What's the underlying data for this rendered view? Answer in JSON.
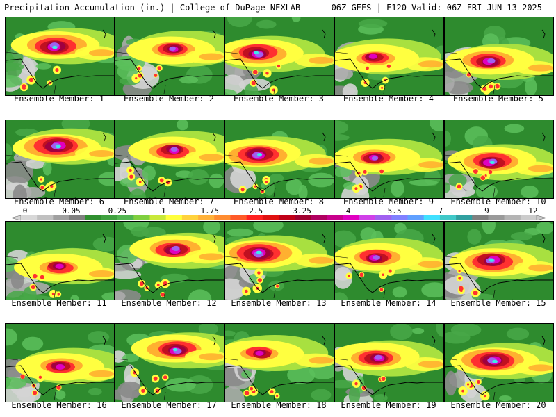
{
  "header": {
    "left": "Precipitation Accumulation (in.) | College of DuPage NEXLAB",
    "right": "06Z GEFS | F120 Valid: 06Z FRI JUN 13 2025"
  },
  "member_label_prefix": "Ensemble Member:",
  "members": [
    1,
    2,
    3,
    4,
    5,
    6,
    7,
    8,
    9,
    10,
    11,
    12,
    13,
    14,
    15,
    16,
    17,
    18,
    19,
    20
  ],
  "colorbar": {
    "tick_labels": [
      "0",
      "0.05",
      "0.25",
      "1",
      "1.75",
      "2.5",
      "3.25",
      "4",
      "5.5",
      "7",
      "9",
      "12"
    ],
    "colors": [
      "#d8d8d8",
      "#c0c0c0",
      "#a0a0a0",
      "#808080",
      "#2f8f2f",
      "#3fa03f",
      "#52b552",
      "#7fcf3f",
      "#c8e83a",
      "#ffff3c",
      "#ffd23c",
      "#ffb13a",
      "#ff8c30",
      "#ff5a28",
      "#ff2020",
      "#e01010",
      "#c00018",
      "#a00030",
      "#b00060",
      "#c8008c",
      "#e000c0",
      "#d040e8",
      "#a060f0",
      "#8080ff",
      "#60a0ff",
      "#40e0ff",
      "#40c8c8",
      "#30a0a0",
      "#808080",
      "#9a9a9a",
      "#b4b4b4",
      "#cccccc"
    ]
  },
  "precip_palette": {
    "gray1": "#d4d4d4",
    "gray2": "#ababab",
    "gray3": "#8a8a8a",
    "green1": "#2e8b2e",
    "green2": "#48a848",
    "green3": "#5cc05c",
    "lime": "#a8e040",
    "yellow": "#ffff40",
    "orange": "#ffb030",
    "red": "#ff3030",
    "darkred": "#c01020",
    "maroon": "#a00040",
    "magenta": "#e000c0",
    "purple": "#a060f0",
    "blue": "#6090ff",
    "cyan": "#40e8e8"
  }
}
